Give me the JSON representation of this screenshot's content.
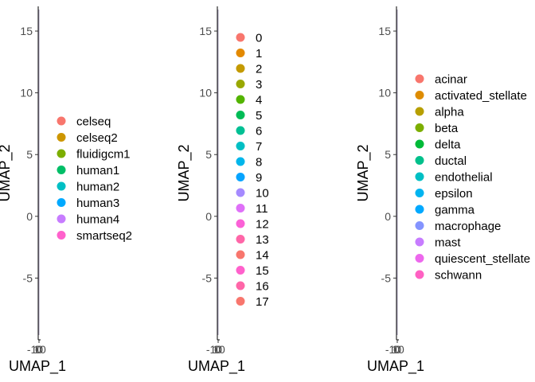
{
  "chart_data": [
    {
      "type": "scatter",
      "xlabel": "UMAP_1",
      "ylabel": "UMAP_2",
      "ylim": [
        -10,
        17
      ],
      "y_ticks": [
        -5,
        0,
        5,
        10,
        15
      ],
      "x_ticks_overlapping": [
        "-10",
        "0",
        "10"
      ],
      "legend_position": "right",
      "legend_items": [
        "celseq",
        "celseq2",
        "fluidigcm1",
        "human1",
        "human2",
        "human3",
        "human4",
        "smartseq2"
      ],
      "legend_colors": [
        "#F8766D",
        "#CD9600",
        "#7CAE00",
        "#00BE67",
        "#00BFC4",
        "#00A9FF",
        "#C77CFF",
        "#FF61CC"
      ]
    },
    {
      "type": "scatter",
      "xlabel": "UMAP_1",
      "ylabel": "UMAP_2",
      "ylim": [
        -10,
        17
      ],
      "y_ticks": [
        -5,
        0,
        5,
        10,
        15
      ],
      "x_ticks_overlapping": [
        "-10",
        "0",
        "10"
      ],
      "legend_position": "right",
      "legend_items": [
        "0",
        "1",
        "2",
        "3",
        "4",
        "5",
        "6",
        "7",
        "8",
        "9",
        "10",
        "11",
        "12",
        "13",
        "14",
        "15",
        "16",
        "17"
      ],
      "legend_colors": [
        "#F8766D",
        "#E38900",
        "#C49A00",
        "#99A800",
        "#53B400",
        "#00BC56",
        "#00C094",
        "#00BFC4",
        "#00B6EB",
        "#06A4FF",
        "#A58AFF",
        "#DF70F8",
        "#FB61D7",
        "#FF66A8",
        "#F8766D",
        "#FF61CC",
        "#FF66A8",
        "#F8766D"
      ]
    },
    {
      "type": "scatter",
      "xlabel": "UMAP_1",
      "ylabel": "UMAP_2",
      "ylim": [
        -10,
        17
      ],
      "y_ticks": [
        -5,
        0,
        5,
        10,
        15
      ],
      "x_ticks_overlapping": [
        "-10",
        "0",
        "10"
      ],
      "legend_position": "right",
      "legend_items": [
        "acinar",
        "activated_stellate",
        "alpha",
        "beta",
        "delta",
        "ductal",
        "endothelial",
        "epsilon",
        "gamma",
        "macrophage",
        "mast",
        "quiescent_stellate",
        "schwann"
      ],
      "legend_colors": [
        "#F8766D",
        "#DE8C00",
        "#B79F00",
        "#7CAE00",
        "#00BA38",
        "#00C08B",
        "#00BFC4",
        "#00B4F0",
        "#00A9FF",
        "#8494FF",
        "#C77CFF",
        "#ED68ED",
        "#FF61C3"
      ]
    }
  ]
}
